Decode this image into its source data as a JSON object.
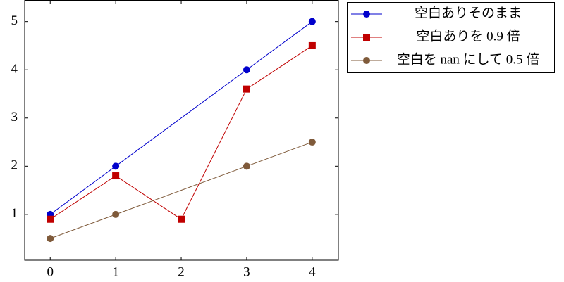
{
  "chart_data": {
    "type": "line",
    "series": [
      {
        "name": "空白ありそのまま",
        "color": "#0000cc",
        "marker": "circle",
        "x": [
          0,
          1,
          3,
          4
        ],
        "values": [
          1,
          2,
          4,
          5
        ]
      },
      {
        "name": "空白ありを 0.9 倍",
        "color": "#c00000",
        "marker": "square",
        "x": [
          0,
          1,
          2,
          3,
          4
        ],
        "values": [
          0.9,
          1.8,
          0.9,
          3.6,
          4.5
        ]
      },
      {
        "name": "空白を nan にして 0.5 倍",
        "color": "#7f5a3a",
        "marker": "circle",
        "x": [
          0,
          1,
          3,
          4
        ],
        "values": [
          0.5,
          1,
          2,
          2.5
        ]
      }
    ],
    "xlim": [
      -0.39,
      4.4
    ],
    "ylim": [
      0.05,
      5.44
    ],
    "xticks": [
      0,
      1,
      2,
      3,
      4
    ],
    "yticks": [
      1,
      2,
      3,
      4,
      5
    ],
    "grid": false,
    "legend": "outer upper right"
  }
}
